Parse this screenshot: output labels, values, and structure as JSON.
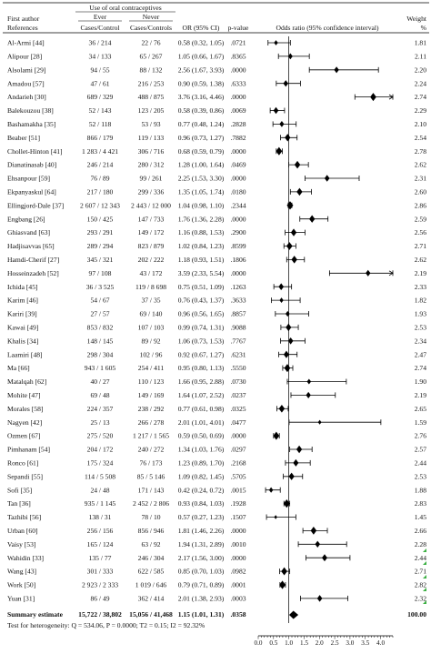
{
  "chart_data": {
    "type": "forest",
    "header": {
      "col_author_1": "First author",
      "col_author_2": "References",
      "group_label": "Use of oral contraceptives",
      "group_ever": "Ever",
      "group_never": "Never",
      "col_ever_sub": "Cases/Control",
      "col_never_sub": "Cases/Controls",
      "col_or": "OR (95% CI)",
      "col_p": "p-value",
      "col_plot": "Odds ratio (95% confidence interval)",
      "col_weight_1": "Weight",
      "col_weight_2": "%"
    },
    "x_ticks": [
      "0.0",
      "0.5",
      "1.0",
      "1.5",
      "2.0",
      "2.5",
      "3.0",
      "3.5",
      "4.0"
    ],
    "xlim": [
      0,
      4.4
    ],
    "studies": [
      {
        "author": "Al-Armi [44]",
        "ever": "36 / 214",
        "never": "22 / 76",
        "or_ci": "0.58 (0.32, 1.05)",
        "p": ".0721",
        "or": 0.58,
        "lo": 0.32,
        "hi": 1.05,
        "weight": "1.81",
        "w": 1.81
      },
      {
        "author": "Alipour [28]",
        "ever": "34 / 133",
        "never": "65 / 267",
        "or_ci": "1.05 (0.66, 1.67)",
        "p": ".8365",
        "or": 1.05,
        "lo": 0.66,
        "hi": 1.67,
        "weight": "2.11",
        "w": 2.11
      },
      {
        "author": "Alsolami [29]",
        "ever": "94 / 55",
        "never": "88 / 132",
        "or_ci": "2.56 (1.67, 3.93)",
        "p": ".0000",
        "or": 2.56,
        "lo": 1.67,
        "hi": 3.93,
        "weight": "2.20",
        "w": 2.2
      },
      {
        "author": "Amadou [57]",
        "ever": "47 / 61",
        "never": "216 / 253",
        "or_ci": "0.90 (0.59, 1.38)",
        "p": ".6333",
        "or": 0.9,
        "lo": 0.59,
        "hi": 1.38,
        "weight": "2.24",
        "w": 2.24
      },
      {
        "author": "Andarieh [30]",
        "ever": "689 / 329",
        "never": "488 / 875",
        "or_ci": "3.76 (3.16, 4.46)",
        "p": ".0000",
        "or": 3.76,
        "lo": 3.16,
        "hi": 4.46,
        "weight": "2.74",
        "w": 2.74
      },
      {
        "author": "Balekouzou [38]",
        "ever": "52 / 143",
        "never": "123 / 205",
        "or_ci": "0.58 (0.39, 0.86)",
        "p": ".0069",
        "or": 0.58,
        "lo": 0.39,
        "hi": 0.86,
        "weight": "2.29",
        "w": 2.29
      },
      {
        "author": "Bashamakha [35]",
        "ever": "52 / 118",
        "never": "53 / 93",
        "or_ci": "0.77 (0.48, 1.24)",
        "p": ".2828",
        "or": 0.77,
        "lo": 0.48,
        "hi": 1.24,
        "weight": "2.10",
        "w": 2.1
      },
      {
        "author": "Beaber [51]",
        "ever": "866 / 179",
        "never": "119 / 133",
        "or_ci": "0.96 (0.73, 1.27)",
        "p": ".7882",
        "or": 0.96,
        "lo": 0.73,
        "hi": 1.27,
        "weight": "2.54",
        "w": 2.54
      },
      {
        "author": "Chollet-Hinton [41]",
        "ever": "1 283 / 4 421",
        "never": "306 / 716",
        "or_ci": "0.68 (0.59, 0.79)",
        "p": ".0000",
        "or": 0.68,
        "lo": 0.59,
        "hi": 0.79,
        "weight": "2.78",
        "w": 2.78
      },
      {
        "author": "Dianatinasab [40]",
        "ever": "246 / 214",
        "never": "280 / 312",
        "or_ci": "1.28 (1.00, 1.64)",
        "p": ".0469",
        "or": 1.28,
        "lo": 1.0,
        "hi": 1.64,
        "weight": "2.62",
        "w": 2.62
      },
      {
        "author": "Ehsanpour [59]",
        "ever": "76 / 89",
        "never": "99 / 261",
        "or_ci": "2.25 (1.53, 3.30)",
        "p": ".0000",
        "or": 2.25,
        "lo": 1.53,
        "hi": 3.3,
        "weight": "2.31",
        "w": 2.31
      },
      {
        "author": "Ekpanyaskul [64]",
        "ever": "217 / 180",
        "never": "299 / 336",
        "or_ci": "1.35 (1.05, 1.74)",
        "p": ".0180",
        "or": 1.35,
        "lo": 1.05,
        "hi": 1.74,
        "weight": "2.60",
        "w": 2.6
      },
      {
        "author": "Ellingjord-Dale [37]",
        "ever": "2 607 / 12 343",
        "never": "2 443 / 12 000",
        "or_ci": "1.04 (0.98, 1.10)",
        "p": ".2344",
        "or": 1.04,
        "lo": 0.98,
        "hi": 1.1,
        "weight": "2.86",
        "w": 2.86
      },
      {
        "author": "Engbang [26]",
        "ever": "150 / 425",
        "never": "147 / 733",
        "or_ci": "1.76 (1.36, 2.28)",
        "p": ".0000",
        "or": 1.76,
        "lo": 1.36,
        "hi": 2.28,
        "weight": "2.59",
        "w": 2.59
      },
      {
        "author": "Ghiasvand [63]",
        "ever": "293 / 291",
        "never": "149 / 172",
        "or_ci": "1.16 (0.88, 1.53)",
        "p": ".2900",
        "or": 1.16,
        "lo": 0.88,
        "hi": 1.53,
        "weight": "2.56",
        "w": 2.56
      },
      {
        "author": "Hadjisavvas [65]",
        "ever": "289 / 294",
        "never": "823 / 879",
        "or_ci": "1.02 (0.84, 1.23)",
        "p": ".8599",
        "or": 1.02,
        "lo": 0.84,
        "hi": 1.23,
        "weight": "2.71",
        "w": 2.71
      },
      {
        "author": "Hamdi-Cherif [27]",
        "ever": "345 / 321",
        "never": "202 / 222",
        "or_ci": "1.18 (0.93, 1.51)",
        "p": ".1806",
        "or": 1.18,
        "lo": 0.93,
        "hi": 1.51,
        "weight": "2.62",
        "w": 2.62
      },
      {
        "author": "Hosseinzadeh [52]",
        "ever": "97 / 108",
        "never": "43 / 172",
        "or_ci": "3.59 (2.33, 5.54)",
        "p": ".0000",
        "or": 3.59,
        "lo": 2.33,
        "hi": 5.54,
        "weight": "2.19",
        "w": 2.19
      },
      {
        "author": "Ichida [45]",
        "ever": "36 / 3 525",
        "never": "119 / 8 698",
        "or_ci": "0.75 (0.51, 1.09)",
        "p": ".1263",
        "or": 0.75,
        "lo": 0.51,
        "hi": 1.09,
        "weight": "2.33",
        "w": 2.33
      },
      {
        "author": "Karim [46]",
        "ever": "54 / 67",
        "never": "37 / 35",
        "or_ci": "0.76 (0.43, 1.37)",
        "p": ".3633",
        "or": 0.76,
        "lo": 0.43,
        "hi": 1.37,
        "weight": "1.82",
        "w": 1.82
      },
      {
        "author": "Kariri [39]",
        "ever": "27 / 57",
        "never": "69 / 140",
        "or_ci": "0.96 (0.56, 1.65)",
        "p": ".8857",
        "or": 0.96,
        "lo": 0.56,
        "hi": 1.65,
        "weight": "1.93",
        "w": 1.93
      },
      {
        "author": "Kawai [49]",
        "ever": "853 / 832",
        "never": "107 / 103",
        "or_ci": "0.99 (0.74, 1.31)",
        "p": ".9088",
        "or": 0.99,
        "lo": 0.74,
        "hi": 1.31,
        "weight": "2.53",
        "w": 2.53
      },
      {
        "author": "Khalis [34]",
        "ever": "148 / 145",
        "never": "89 / 92",
        "or_ci": "1.06 (0.73, 1.53)",
        "p": ".7767",
        "or": 1.06,
        "lo": 0.73,
        "hi": 1.53,
        "weight": "2.34",
        "w": 2.34
      },
      {
        "author": "Laamiri [48]",
        "ever": "298 / 304",
        "never": "102 / 96",
        "or_ci": "0.92 (0.67, 1.27)",
        "p": ".6231",
        "or": 0.92,
        "lo": 0.67,
        "hi": 1.27,
        "weight": "2.47",
        "w": 2.47
      },
      {
        "author": "Ma [66]",
        "ever": "943 / 1 605",
        "never": "254 / 411",
        "or_ci": "0.95 (0.80, 1.13)",
        "p": ".5550",
        "or": 0.95,
        "lo": 0.8,
        "hi": 1.13,
        "weight": "2.74",
        "w": 2.74
      },
      {
        "author": "Matalqah [62]",
        "ever": "40 / 27",
        "never": "110 / 123",
        "or_ci": "1.66 (0.95, 2.88)",
        "p": ".0730",
        "or": 1.66,
        "lo": 0.95,
        "hi": 2.88,
        "weight": "1.90",
        "w": 1.9
      },
      {
        "author": "Mohite [47]",
        "ever": "69 / 48",
        "never": "149 / 169",
        "or_ci": "1.64 (1.07, 2.52)",
        "p": ".0237",
        "or": 1.64,
        "lo": 1.07,
        "hi": 2.52,
        "weight": "2.19",
        "w": 2.19
      },
      {
        "author": "Morales [58]",
        "ever": "224 / 357",
        "never": "238 / 292",
        "or_ci": "0.77 (0.61, 0.98)",
        "p": ".0325",
        "or": 0.77,
        "lo": 0.61,
        "hi": 0.98,
        "weight": "2.65",
        "w": 2.65
      },
      {
        "author": "Nagyen [42]",
        "ever": "25 / 13",
        "never": "266 / 278",
        "or_ci": "2.01 (1.01, 4.01)",
        "p": ".0477",
        "or": 2.01,
        "lo": 1.01,
        "hi": 4.01,
        "weight": "1.59",
        "w": 1.59
      },
      {
        "author": "Ozmen [67]",
        "ever": "275 / 520",
        "never": "1 217 / 1 565",
        "or_ci": "0.59 (0.50, 0.69)",
        "p": ".0000",
        "or": 0.59,
        "lo": 0.5,
        "hi": 0.69,
        "weight": "2.76",
        "w": 2.76
      },
      {
        "author": "Pimhanam [54]",
        "ever": "204 / 172",
        "never": "240 / 272",
        "or_ci": "1.34 (1.03, 1.76)",
        "p": ".0297",
        "or": 1.34,
        "lo": 1.03,
        "hi": 1.76,
        "weight": "2.57",
        "w": 2.57
      },
      {
        "author": "Ronco [61]",
        "ever": "175 / 324",
        "never": "76 / 173",
        "or_ci": "1.23 (0.89, 1.70)",
        "p": ".2168",
        "or": 1.23,
        "lo": 0.89,
        "hi": 1.7,
        "weight": "2.44",
        "w": 2.44
      },
      {
        "author": "Sepandi [55]",
        "ever": "114 / 5 508",
        "never": "85 / 5 146",
        "or_ci": "1.09 (0.82, 1.45)",
        "p": ".5705",
        "or": 1.09,
        "lo": 0.82,
        "hi": 1.45,
        "weight": "2.53",
        "w": 2.53
      },
      {
        "author": "Sofi [35]",
        "ever": "24 / 48",
        "never": "171 / 143",
        "or_ci": "0.42 (0.24, 0.72)",
        "p": ".0015",
        "or": 0.42,
        "lo": 0.24,
        "hi": 0.72,
        "weight": "1.88",
        "w": 1.88
      },
      {
        "author": "Tan [36]",
        "ever": "935 / 1 145",
        "never": "2 452 / 2 806",
        "or_ci": "0.93 (0.84, 1.03)",
        "p": ".1928",
        "or": 0.93,
        "lo": 0.84,
        "hi": 1.03,
        "weight": "2.83",
        "w": 2.83
      },
      {
        "author": "Tazhibi [56]",
        "ever": "138 / 31",
        "never": "78 / 10",
        "or_ci": "0.57 (0.27, 1.23)",
        "p": ".1507",
        "or": 0.57,
        "lo": 0.27,
        "hi": 1.23,
        "weight": "1.45",
        "w": 1.45
      },
      {
        "author": "Urban [60]",
        "ever": "256 / 156",
        "never": "856 / 946",
        "or_ci": "1.81 (1.46, 2.26)",
        "p": ".0000",
        "or": 1.81,
        "lo": 1.46,
        "hi": 2.26,
        "weight": "2.66",
        "w": 2.66
      },
      {
        "author": "Vaisy [53]",
        "ever": "165 / 124",
        "never": "63 / 92",
        "or_ci": "1.94 (1.31, 2.89)",
        "p": ".0010",
        "or": 1.94,
        "lo": 1.31,
        "hi": 2.89,
        "weight": "2.28",
        "w": 2.28
      },
      {
        "author": "Wahidin [33]",
        "ever": "135 / 77",
        "never": "246 / 304",
        "or_ci": "2.17 (1.56, 3.00)",
        "p": ".0000",
        "or": 2.17,
        "lo": 1.56,
        "hi": 3.0,
        "weight": "2.44",
        "w": 2.44
      },
      {
        "author": "Wang [43]",
        "ever": "301 / 333",
        "never": "622 / 585",
        "or_ci": "0.85 (0.70, 1.03)",
        "p": ".0982",
        "or": 0.85,
        "lo": 0.7,
        "hi": 1.03,
        "weight": "2.71",
        "w": 2.71
      },
      {
        "author": "Work [50]",
        "ever": "2 923 / 2 333",
        "never": "1 019 / 646",
        "or_ci": "0.79 (0.71, 0.89)",
        "p": ".0001",
        "or": 0.79,
        "lo": 0.71,
        "hi": 0.89,
        "weight": "2.82",
        "w": 2.82
      },
      {
        "author": "Yuan [31]",
        "ever": "86 / 49",
        "never": "362 / 414",
        "or_ci": "2.01 (1.38, 2.93)",
        "p": ".0003",
        "or": 2.01,
        "lo": 1.38,
        "hi": 2.93,
        "weight": "2.32",
        "w": 2.32
      }
    ],
    "summary": {
      "label": "Summary estimate",
      "ever": "15,722 / 38,802",
      "never": "15,056 / 41,468",
      "or_ci": "1.15 (1.01, 1.31)",
      "p": ".0358",
      "or": 1.15,
      "lo": 1.01,
      "hi": 1.31,
      "weight": "100.00"
    },
    "heterogeneity": "Test for heterogeneity: Q = 534.06, P = 0.0000; T2 = 0.15; I2 = 92.32%",
    "colors": {
      "text": "#111111",
      "line": "#000000",
      "marker": "#000000",
      "corner_mark": "#3cb043"
    }
  }
}
